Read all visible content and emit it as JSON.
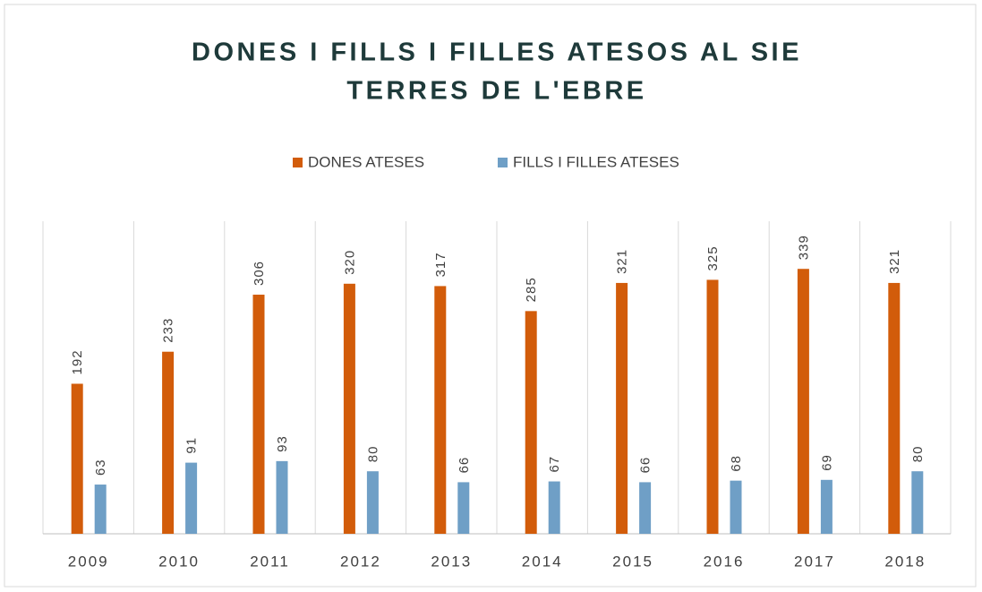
{
  "chart_data": {
    "type": "bar",
    "title": [
      "DONES I FILLS I FILLES ATESOS AL SIE",
      "TERRES DE L'EBRE"
    ],
    "categories": [
      "2009",
      "2010",
      "2011",
      "2012",
      "2013",
      "2014",
      "2015",
      "2016",
      "2017",
      "2018"
    ],
    "series": [
      {
        "name": "DONES ATESES",
        "color": "#d25c0a",
        "values": [
          192,
          233,
          306,
          320,
          317,
          285,
          321,
          325,
          339,
          321
        ]
      },
      {
        "name": "FILLS I FILLES ATESES",
        "color": "#6f9fc6",
        "values": [
          63,
          91,
          93,
          80,
          66,
          67,
          66,
          68,
          69,
          80
        ]
      }
    ],
    "ylim": [
      0,
      400
    ]
  }
}
